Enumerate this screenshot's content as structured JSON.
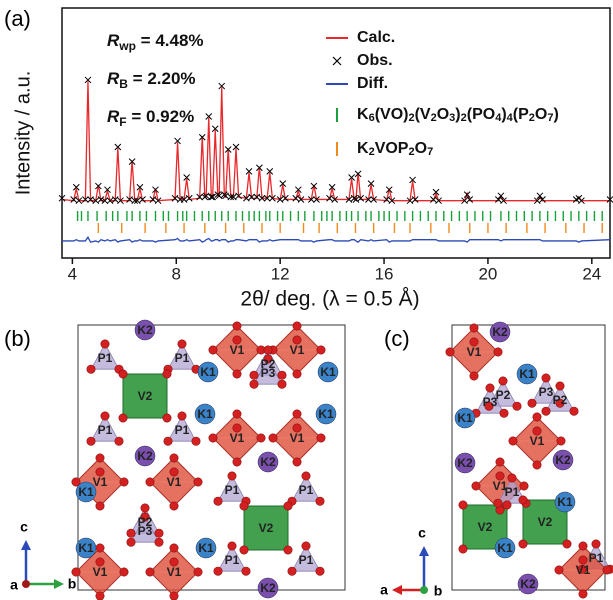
{
  "panel_labels": [
    "(a)",
    "(b)",
    "(c)"
  ],
  "chart_data": {
    "type": "line",
    "x_label": "2θ/ deg. (λ = 0.5 Å)",
    "y_label": "Intensity / a.u.",
    "xlim": [
      3.6,
      24.7
    ],
    "ylim": [
      -0.45,
      1.6
    ],
    "xticks": [
      4,
      8,
      12,
      16,
      20,
      24
    ],
    "annotations": [
      [
        "R",
        "wp",
        " = 4.48%"
      ],
      [
        "R",
        "B",
        " = 2.20%"
      ],
      [
        "R",
        "F",
        " = 0.92%"
      ]
    ],
    "x": [
      3.6,
      4.05,
      4.15,
      4.25,
      4.5,
      4.6,
      4.7,
      4.9,
      5.0,
      5.1,
      5.25,
      5.35,
      5.45,
      5.65,
      5.75,
      5.85,
      6.2,
      6.3,
      6.4,
      6.5,
      6.6,
      6.7,
      7.1,
      7.2,
      7.3,
      7.95,
      8.05,
      8.15,
      8.3,
      8.4,
      8.5,
      8.9,
      9.0,
      9.1,
      9.15,
      9.25,
      9.35,
      9.4,
      9.5,
      9.6,
      9.65,
      9.75,
      9.85,
      9.9,
      10.0,
      10.1,
      10.2,
      10.3,
      10.4,
      10.7,
      10.8,
      10.9,
      11.1,
      11.2,
      11.3,
      11.5,
      11.6,
      11.7,
      12.0,
      12.1,
      12.2,
      12.6,
      12.7,
      12.8,
      13.2,
      13.3,
      13.4,
      13.9,
      14.0,
      14.1,
      14.65,
      14.75,
      14.85,
      14.92,
      15.0,
      15.1,
      15.4,
      15.5,
      15.6,
      16.1,
      16.2,
      16.3,
      17.0,
      17.1,
      17.2,
      17.9,
      18.0,
      18.1,
      19.1,
      19.2,
      19.3,
      20.4,
      20.5,
      20.6,
      21.9,
      22.0,
      22.1,
      23.4,
      23.5,
      23.6,
      24.7
    ],
    "series": [
      {
        "name": "Calc.",
        "color": "#e8282b",
        "marker": "line",
        "values": [
          0.03,
          0.02,
          0.12,
          0.02,
          0.02,
          1.0,
          0.02,
          0.02,
          0.15,
          0.02,
          0.02,
          0.1,
          0.02,
          0.02,
          0.45,
          0.02,
          0.02,
          0.35,
          0.02,
          0.02,
          0.12,
          0.02,
          0.02,
          0.12,
          0.02,
          0.03,
          0.5,
          0.03,
          0.03,
          0.2,
          0.03,
          0.04,
          0.55,
          0.05,
          0.05,
          0.7,
          0.05,
          0.05,
          0.6,
          0.06,
          0.06,
          0.95,
          0.06,
          0.05,
          0.45,
          0.05,
          0.05,
          0.45,
          0.05,
          0.04,
          0.25,
          0.04,
          0.04,
          0.3,
          0.04,
          0.04,
          0.25,
          0.04,
          0.03,
          0.15,
          0.03,
          0.03,
          0.1,
          0.03,
          0.03,
          0.15,
          0.03,
          0.03,
          0.12,
          0.03,
          0.03,
          0.2,
          0.03,
          0.03,
          0.25,
          0.03,
          0.03,
          0.15,
          0.03,
          0.02,
          0.12,
          0.02,
          0.02,
          0.18,
          0.02,
          0.02,
          0.08,
          0.02,
          0.02,
          0.08,
          0.02,
          0.02,
          0.06,
          0.02,
          0.02,
          0.05,
          0.02,
          0.02,
          0.05,
          0.02,
          0.02
        ]
      },
      {
        "name": "Obs.",
        "color": "#000000",
        "marker": "x",
        "values": [
          0.04,
          0.03,
          0.13,
          0.02,
          0.03,
          1.01,
          0.03,
          0.02,
          0.14,
          0.03,
          0.02,
          0.11,
          0.02,
          0.03,
          0.46,
          0.02,
          0.03,
          0.34,
          0.02,
          0.02,
          0.13,
          0.03,
          0.03,
          0.11,
          0.02,
          0.04,
          0.51,
          0.03,
          0.03,
          0.21,
          0.04,
          0.05,
          0.54,
          0.05,
          0.06,
          0.71,
          0.05,
          0.05,
          0.61,
          0.07,
          0.06,
          0.96,
          0.07,
          0.06,
          0.44,
          0.05,
          0.05,
          0.46,
          0.06,
          0.04,
          0.26,
          0.05,
          0.05,
          0.29,
          0.04,
          0.04,
          0.26,
          0.04,
          0.03,
          0.16,
          0.04,
          0.04,
          0.11,
          0.03,
          0.03,
          0.14,
          0.03,
          0.04,
          0.13,
          0.03,
          0.03,
          0.21,
          0.04,
          0.03,
          0.24,
          0.04,
          0.03,
          0.16,
          0.03,
          0.03,
          0.11,
          0.02,
          0.02,
          0.19,
          0.03,
          0.03,
          0.09,
          0.02,
          0.02,
          0.07,
          0.03,
          0.03,
          0.06,
          0.02,
          0.02,
          0.06,
          0.03,
          0.03,
          0.04,
          0.02,
          0.03
        ]
      },
      {
        "name": "Diff.",
        "color": "#2b49b8",
        "marker": "line",
        "values": [
          -0.31,
          -0.31,
          -0.3,
          -0.31,
          -0.31,
          -0.28,
          -0.32,
          -0.31,
          -0.32,
          -0.3,
          -0.31,
          -0.3,
          -0.31,
          -0.3,
          -0.32,
          -0.31,
          -0.3,
          -0.32,
          -0.31,
          -0.31,
          -0.3,
          -0.31,
          -0.31,
          -0.32,
          -0.31,
          -0.3,
          -0.29,
          -0.31,
          -0.31,
          -0.3,
          -0.31,
          -0.3,
          -0.32,
          -0.31,
          -0.3,
          -0.29,
          -0.31,
          -0.31,
          -0.3,
          -0.3,
          -0.31,
          -0.3,
          -0.3,
          -0.3,
          -0.32,
          -0.31,
          -0.31,
          -0.3,
          -0.3,
          -0.31,
          -0.3,
          -0.3,
          -0.3,
          -0.32,
          -0.31,
          -0.31,
          -0.3,
          -0.31,
          -0.3,
          -0.3,
          -0.3,
          -0.3,
          -0.3,
          -0.31,
          -0.31,
          -0.32,
          -0.31,
          -0.3,
          -0.3,
          -0.31,
          -0.31,
          -0.3,
          -0.3,
          -0.31,
          -0.32,
          -0.3,
          -0.31,
          -0.3,
          -0.31,
          -0.3,
          -0.32,
          -0.31,
          -0.31,
          -0.3,
          -0.3,
          -0.3,
          -0.3,
          -0.31,
          -0.31,
          -0.32,
          -0.3,
          -0.3,
          -0.31,
          -0.3,
          -0.3,
          -0.3,
          -0.31,
          -0.31,
          -0.32,
          -0.31,
          -0.3
        ]
      }
    ],
    "reflections": [
      {
        "name": "K6(VO)2(V2O3)2(PO4)4(P2O7)",
        "color": "#19a03c",
        "positions": [
          4.2,
          4.35,
          4.6,
          4.95,
          5.3,
          5.55,
          5.75,
          6.1,
          6.3,
          6.6,
          6.85,
          7.2,
          7.5,
          7.7,
          8.05,
          8.25,
          8.4,
          8.7,
          9.0,
          9.25,
          9.5,
          9.75,
          10.0,
          10.3,
          10.55,
          10.8,
          11.0,
          11.2,
          11.45,
          11.6,
          11.9,
          12.1,
          12.4,
          12.7,
          12.95,
          13.3,
          13.6,
          13.8,
          14.0,
          14.3,
          14.55,
          14.75,
          15.0,
          15.3,
          15.5,
          15.8,
          16.0,
          16.2,
          16.5,
          16.8,
          17.1,
          17.4,
          17.7,
          18.0,
          18.3,
          18.6,
          18.9,
          19.2,
          19.5,
          19.8,
          20.1,
          20.5,
          20.8,
          21.1,
          21.4,
          21.7,
          22.0,
          22.3,
          22.6,
          22.9,
          23.2,
          23.5,
          23.8,
          24.1,
          24.4
        ]
      },
      {
        "name": "K2VOP2O7",
        "color": "#f08a1c",
        "positions": [
          5.0,
          5.9,
          6.8,
          7.6,
          8.3,
          9.1,
          9.9,
          10.6,
          11.3,
          12.0,
          12.9,
          13.5,
          14.2,
          14.9,
          15.6,
          16.4,
          17.0,
          17.8,
          18.5,
          19.3,
          20.0,
          20.7,
          21.5,
          22.2,
          23.0,
          23.7,
          24.4
        ]
      }
    ]
  },
  "structures": [
    {
      "atoms": [
        "K2",
        "P1",
        "P1",
        "V1",
        "V1",
        "K1",
        "P2",
        "P3",
        "K1",
        "V2",
        "P1",
        "P1",
        "V1",
        "V1",
        "K1",
        "K1",
        "K2",
        "K2",
        "V1",
        "V1",
        "P1",
        "P1",
        "K1",
        "P2",
        "P3",
        "V2",
        "K1",
        "K1",
        "V1",
        "V1",
        "P1",
        "P1",
        "K2"
      ],
      "axes": [
        "c",
        "a",
        "b"
      ]
    },
    {
      "atoms": [
        "K2",
        "V1",
        "K1",
        "P2",
        "P3",
        "P3",
        "P2",
        "K1",
        "V1",
        "K2",
        "K2",
        "V1",
        "P1",
        "K1",
        "V2",
        "V2",
        "K1",
        "P1",
        "V1",
        "K2"
      ],
      "axes": [
        "c",
        "a",
        "b"
      ]
    }
  ]
}
